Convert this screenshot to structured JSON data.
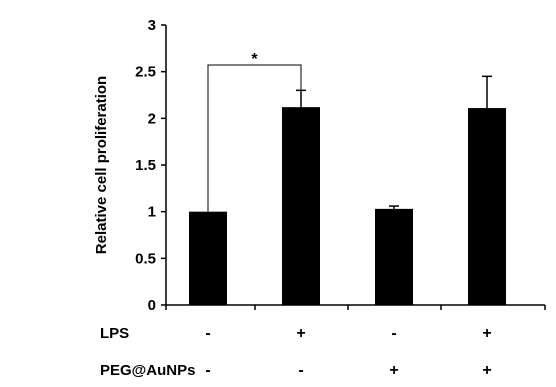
{
  "chart_data": {
    "type": "bar",
    "title": "",
    "xlabel": "",
    "ylabel": "Relative cell proliferation",
    "ylim": [
      0,
      3
    ],
    "yticks": [
      "0",
      "0.5",
      "1",
      "1.5",
      "2",
      "2.5",
      "3"
    ],
    "grid": false,
    "legend": "none",
    "bar_color": "#000000",
    "series": [
      {
        "values": [
          1.0,
          2.12,
          1.03,
          2.11
        ],
        "error": [
          0.0,
          0.18,
          0.03,
          0.34
        ]
      }
    ],
    "conditions": [
      {
        "label": "LPS",
        "signs": [
          "-",
          "+",
          "-",
          "+"
        ]
      },
      {
        "label": "PEG@AuNPs",
        "signs": [
          "-",
          "-",
          "+",
          "+"
        ]
      }
    ],
    "annotations": [
      {
        "text": "*",
        "from_bar": 0,
        "to_bar": 1
      }
    ]
  }
}
